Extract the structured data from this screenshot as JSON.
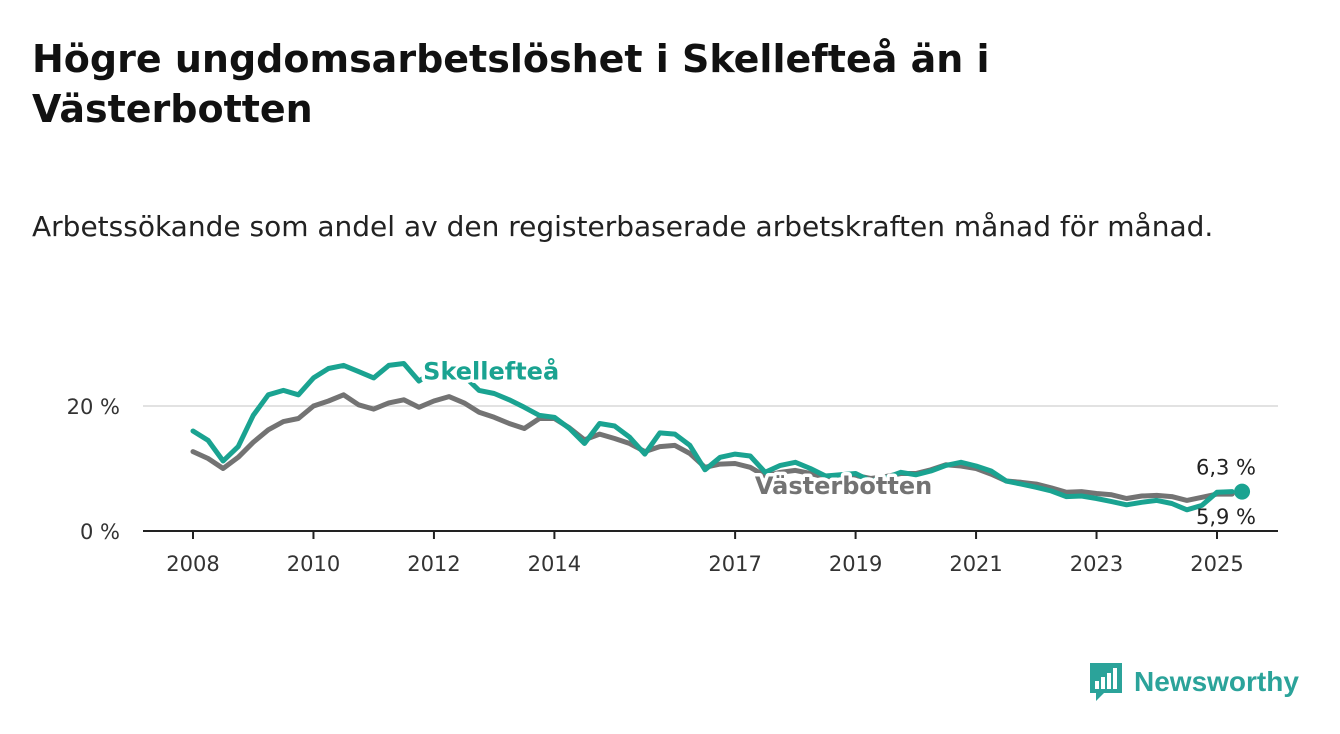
{
  "header": {
    "title": "Högre ungdomsarbetslöshet i Skellefteå än i Västerbotten",
    "subtitle": "Arbetssökande som andel av den registerbaserade arbetskraften månad för månad."
  },
  "logo": {
    "text": "Newsworthy",
    "icon": "newsworthy-chart-icon",
    "color": "#2ba39a"
  },
  "chart_data": {
    "type": "line",
    "title": "Högre ungdomsarbetslöshet i Skellefteå än i Västerbotten",
    "subtitle": "Arbetssökande som andel av den registerbaserade arbetskraften månad för månad.",
    "xlabel": "",
    "ylabel": "",
    "x_ticks": [
      "2008",
      "2010",
      "2012",
      "2014",
      "2017",
      "2019",
      "2021",
      "2023",
      "2025"
    ],
    "y_ticks": [
      "0 %",
      "20 %"
    ],
    "ylim": [
      0,
      30
    ],
    "grid": true,
    "series": [
      {
        "name": "Västerbotten",
        "color": "#737373",
        "end_label": "5,9 %",
        "end_value": 5.9,
        "points": [
          [
            2008.0,
            12.7
          ],
          [
            2008.25,
            11.6
          ],
          [
            2008.5,
            10.0
          ],
          [
            2008.75,
            11.8
          ],
          [
            2009.0,
            14.2
          ],
          [
            2009.25,
            16.2
          ],
          [
            2009.5,
            17.5
          ],
          [
            2009.75,
            18.0
          ],
          [
            2010.0,
            20.0
          ],
          [
            2010.25,
            20.8
          ],
          [
            2010.5,
            21.8
          ],
          [
            2010.75,
            20.2
          ],
          [
            2011.0,
            19.5
          ],
          [
            2011.25,
            20.5
          ],
          [
            2011.5,
            21.0
          ],
          [
            2011.75,
            19.8
          ],
          [
            2012.0,
            20.8
          ],
          [
            2012.25,
            21.5
          ],
          [
            2012.5,
            20.5
          ],
          [
            2012.75,
            19.0
          ],
          [
            2013.0,
            18.2
          ],
          [
            2013.25,
            17.2
          ],
          [
            2013.5,
            16.4
          ],
          [
            2013.75,
            18.0
          ],
          [
            2014.0,
            18.0
          ],
          [
            2014.25,
            16.5
          ],
          [
            2014.5,
            14.6
          ],
          [
            2014.75,
            15.5
          ],
          [
            2015.0,
            14.8
          ],
          [
            2015.25,
            14.0
          ],
          [
            2015.5,
            12.7
          ],
          [
            2015.75,
            13.5
          ],
          [
            2016.0,
            13.7
          ],
          [
            2016.25,
            12.4
          ],
          [
            2016.5,
            10.2
          ],
          [
            2016.75,
            10.7
          ],
          [
            2017.0,
            10.8
          ],
          [
            2017.25,
            10.2
          ],
          [
            2017.5,
            8.8
          ],
          [
            2017.75,
            9.4
          ],
          [
            2018.0,
            9.7
          ],
          [
            2018.25,
            9.2
          ],
          [
            2018.5,
            8.6
          ],
          [
            2018.75,
            8.8
          ],
          [
            2019.0,
            8.9
          ],
          [
            2019.25,
            8.4
          ],
          [
            2019.5,
            8.7
          ],
          [
            2019.75,
            9.2
          ],
          [
            2020.0,
            9.2
          ],
          [
            2020.25,
            9.8
          ],
          [
            2020.5,
            10.6
          ],
          [
            2020.75,
            10.4
          ],
          [
            2021.0,
            10.0
          ],
          [
            2021.25,
            9.1
          ],
          [
            2021.5,
            8.0
          ],
          [
            2021.75,
            7.8
          ],
          [
            2022.0,
            7.5
          ],
          [
            2022.25,
            6.9
          ],
          [
            2022.5,
            6.2
          ],
          [
            2022.75,
            6.3
          ],
          [
            2023.0,
            6.0
          ],
          [
            2023.25,
            5.8
          ],
          [
            2023.5,
            5.2
          ],
          [
            2023.75,
            5.6
          ],
          [
            2024.0,
            5.7
          ],
          [
            2024.25,
            5.5
          ],
          [
            2024.5,
            4.9
          ],
          [
            2024.75,
            5.4
          ],
          [
            2025.0,
            5.9
          ],
          [
            2025.25,
            5.9
          ]
        ]
      },
      {
        "name": "Skellefteå",
        "color": "#1aa391",
        "end_label": "6,3 %",
        "end_value": 6.3,
        "points": [
          [
            2008.0,
            16.0
          ],
          [
            2008.25,
            14.5
          ],
          [
            2008.5,
            11.2
          ],
          [
            2008.75,
            13.5
          ],
          [
            2009.0,
            18.5
          ],
          [
            2009.25,
            21.8
          ],
          [
            2009.5,
            22.5
          ],
          [
            2009.75,
            21.8
          ],
          [
            2010.0,
            24.5
          ],
          [
            2010.25,
            26.0
          ],
          [
            2010.5,
            26.5
          ],
          [
            2010.75,
            25.5
          ],
          [
            2011.0,
            24.5
          ],
          [
            2011.25,
            26.5
          ],
          [
            2011.5,
            26.8
          ],
          [
            2011.75,
            24.0
          ],
          [
            2012.0,
            25.5
          ],
          [
            2012.25,
            26.2
          ],
          [
            2012.5,
            24.8
          ],
          [
            2012.75,
            22.5
          ],
          [
            2013.0,
            22.0
          ],
          [
            2013.25,
            21.0
          ],
          [
            2013.5,
            19.8
          ],
          [
            2013.75,
            18.5
          ],
          [
            2014.0,
            18.2
          ],
          [
            2014.25,
            16.4
          ],
          [
            2014.5,
            14.0
          ],
          [
            2014.75,
            17.2
          ],
          [
            2015.0,
            16.8
          ],
          [
            2015.25,
            15.0
          ],
          [
            2015.5,
            12.3
          ],
          [
            2015.75,
            15.7
          ],
          [
            2016.0,
            15.5
          ],
          [
            2016.25,
            13.7
          ],
          [
            2016.5,
            9.8
          ],
          [
            2016.75,
            11.8
          ],
          [
            2017.0,
            12.3
          ],
          [
            2017.25,
            12.0
          ],
          [
            2017.5,
            9.4
          ],
          [
            2017.75,
            10.5
          ],
          [
            2018.0,
            11.0
          ],
          [
            2018.25,
            10.0
          ],
          [
            2018.5,
            8.8
          ],
          [
            2018.75,
            9.0
          ],
          [
            2019.0,
            9.2
          ],
          [
            2019.25,
            8.0
          ],
          [
            2019.5,
            8.5
          ],
          [
            2019.75,
            9.4
          ],
          [
            2020.0,
            9.0
          ],
          [
            2020.25,
            9.6
          ],
          [
            2020.5,
            10.5
          ],
          [
            2020.75,
            11.0
          ],
          [
            2021.0,
            10.4
          ],
          [
            2021.25,
            9.6
          ],
          [
            2021.5,
            8.0
          ],
          [
            2021.75,
            7.5
          ],
          [
            2022.0,
            7.0
          ],
          [
            2022.25,
            6.4
          ],
          [
            2022.5,
            5.5
          ],
          [
            2022.75,
            5.6
          ],
          [
            2023.0,
            5.2
          ],
          [
            2023.25,
            4.7
          ],
          [
            2023.5,
            4.2
          ],
          [
            2023.75,
            4.6
          ],
          [
            2024.0,
            4.9
          ],
          [
            2024.25,
            4.4
          ],
          [
            2024.5,
            3.4
          ],
          [
            2024.75,
            4.1
          ],
          [
            2025.0,
            6.2
          ],
          [
            2025.25,
            6.3
          ]
        ]
      }
    ]
  }
}
